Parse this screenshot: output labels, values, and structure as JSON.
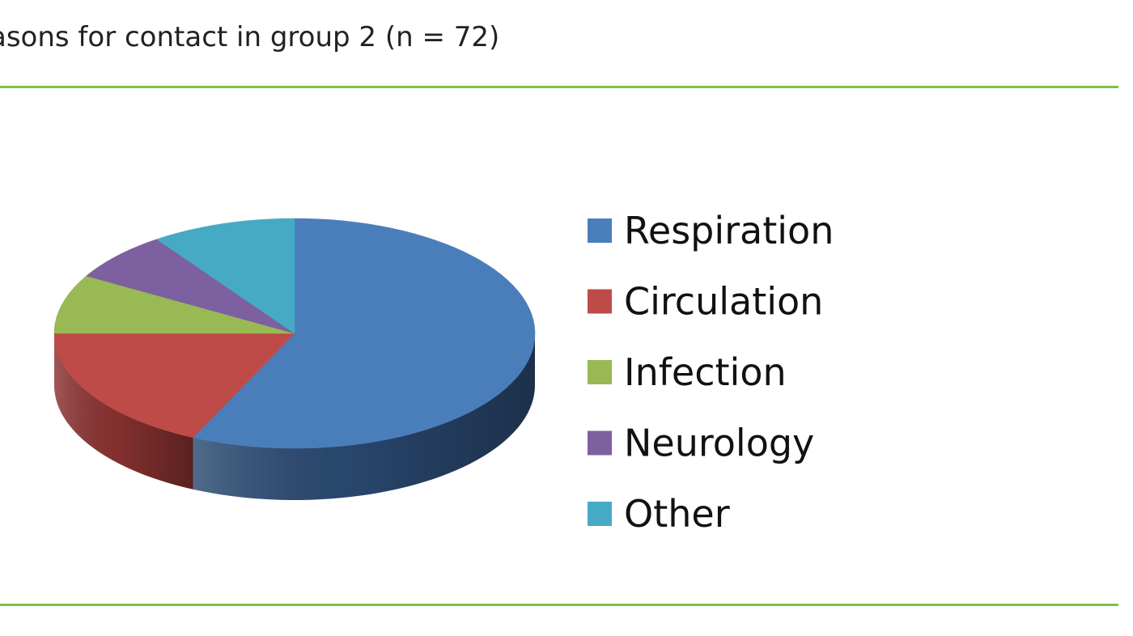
{
  "figure": {
    "title": "asons for contact in group 2 (n = 72)",
    "rule_color": "#7dc14b"
  },
  "chart_data": {
    "type": "pie",
    "title": "",
    "style": "3d",
    "legend_position": "right",
    "series": [
      {
        "name": "Respiration",
        "value": 41,
        "color": "#4a7ebb",
        "dark": "#2b4a72"
      },
      {
        "name": "Circulation",
        "value": 13,
        "color": "#be4b48",
        "dark": "#8a3331"
      },
      {
        "name": "Infection",
        "value": 6,
        "color": "#98b954",
        "dark": "#6e873b"
      },
      {
        "name": "Neurology",
        "value": 5,
        "color": "#7d60a0",
        "dark": "#5a4474"
      },
      {
        "name": "Other",
        "value": 7,
        "color": "#46aac5",
        "dark": "#2f7a8e"
      }
    ]
  }
}
